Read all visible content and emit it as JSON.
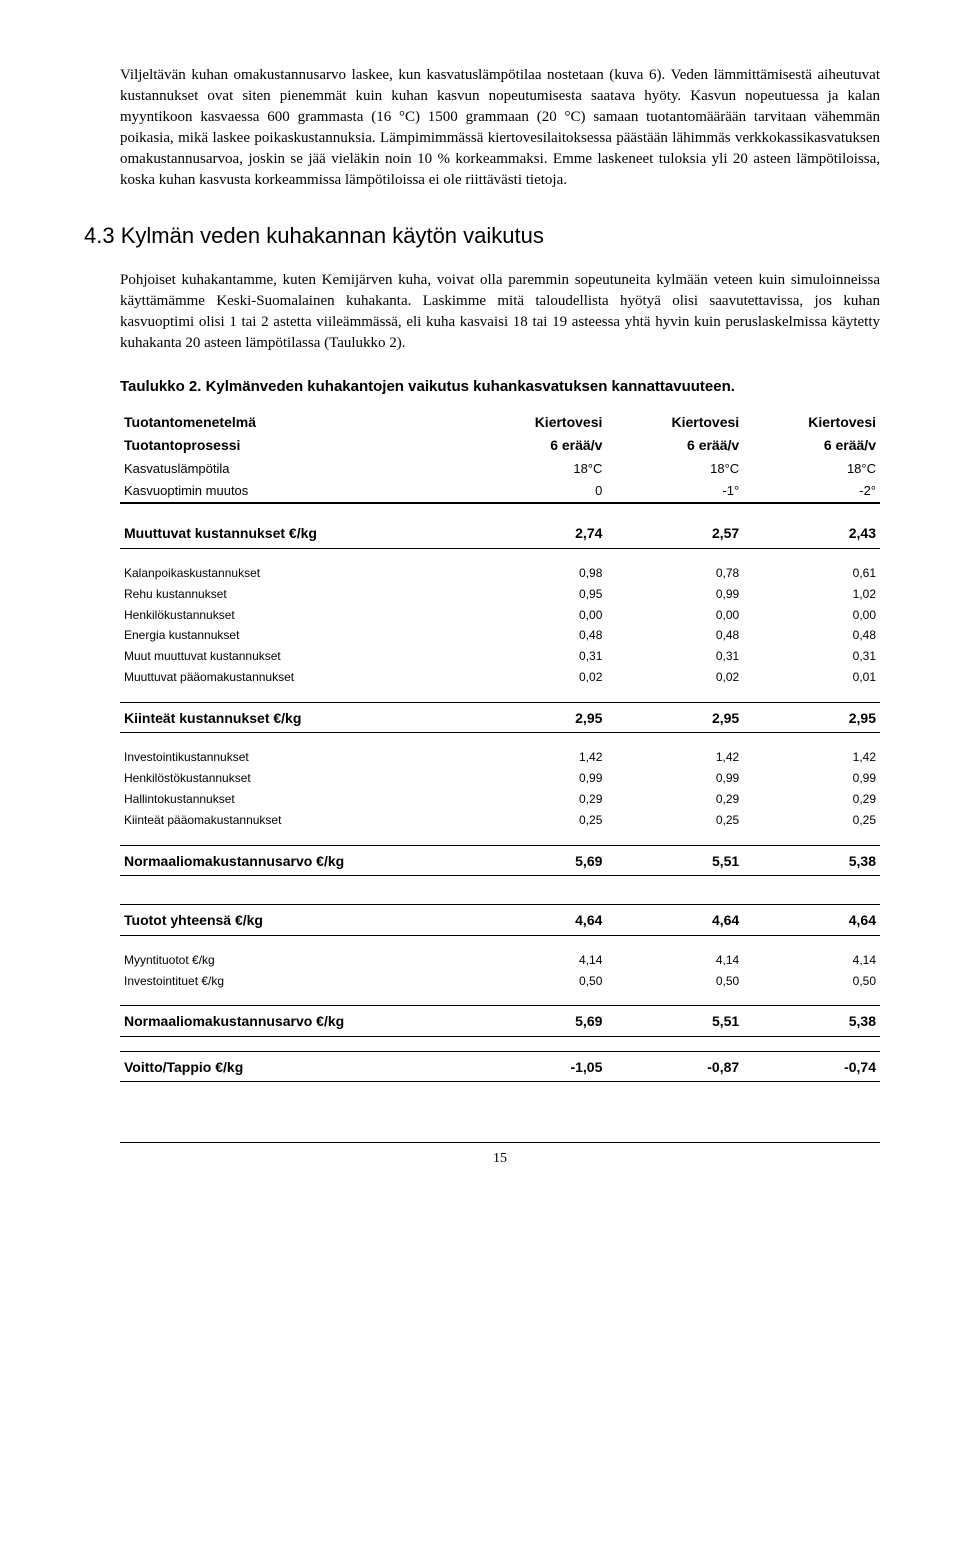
{
  "paragraph1": "Viljeltävän kuhan omakustannusarvo laskee, kun kasvatuslämpötilaa nostetaan (kuva 6). Veden lämmittämisestä aiheutuvat kustannukset ovat siten pienemmät kuin kuhan kasvun nopeutumisesta saatava hyöty. Kasvun nopeutuessa ja kalan myyntikoon kasvaessa 600 grammasta (16 °C) 1500 grammaan (20 °C) samaan tuotantomäärään tarvitaan vähemmän poikasia, mikä laskee poikaskustannuksia. Lämpimimmässä kiertovesilaitoksessa päästään lähimmäs verkkokassikasvatuksen omakustannusarvoa, joskin se jää vieläkin noin 10 % korkeammaksi. Emme laskeneet tuloksia yli 20 asteen lämpötiloissa, koska kuhan kasvusta korkeammissa lämpötiloissa ei ole riittävästi tietoja.",
  "section_heading": "4.3 Kylmän veden kuhakannan käytön vaikutus",
  "paragraph2": "Pohjoiset kuhakantamme, kuten Kemijärven kuha, voivat olla paremmin sopeutuneita kylmään veteen kuin simuloinneissa käyttämämme Keski-Suomalainen kuhakanta. Laskimme mitä taloudellista hyötyä olisi saavutettavissa, jos kuhan kasvuoptimi olisi 1 tai 2 astetta viileämmässä, eli kuha kasvaisi 18 tai 19 asteessa yhtä hyvin kuin peruslaskelmissa käytetty kuhakanta 20 asteen lämpötilassa (Taulukko 2).",
  "table_caption": "Taulukko 2. Kylmänveden kuhakantojen vaikutus kuhankasvatuksen kannattavuuteen.",
  "table": {
    "header_rows": [
      {
        "label": "Tuotantomenetelmä",
        "c1": "Kiertovesi",
        "c2": "Kiertovesi",
        "c3": "Kiertovesi",
        "bold": true
      },
      {
        "label": "Tuotantoprosessi",
        "c1": "6 erää/v",
        "c2": "6 erää/v",
        "c3": "6 erää/v",
        "bold": true,
        "small": true
      },
      {
        "label": "Kasvatuslämpötila",
        "c1": "18°C",
        "c2": "18°C",
        "c3": "18°C"
      },
      {
        "label": "Kasvuoptimin muutos",
        "c1": "0",
        "c2": "-1°",
        "c3": "-2°"
      }
    ],
    "muuttuvat_header": {
      "label": "Muuttuvat kustannukset €/kg",
      "c1": "2,74",
      "c2": "2,57",
      "c3": "2,43"
    },
    "muuttuvat_rows": [
      {
        "label": "Kalanpoikaskustannukset",
        "c1": "0,98",
        "c2": "0,78",
        "c3": "0,61"
      },
      {
        "label": "Rehu kustannukset",
        "c1": "0,95",
        "c2": "0,99",
        "c3": "1,02"
      },
      {
        "label": "Henkilökustannukset",
        "c1": "0,00",
        "c2": "0,00",
        "c3": "0,00"
      },
      {
        "label": "Energia kustannukset",
        "c1": "0,48",
        "c2": "0,48",
        "c3": "0,48"
      },
      {
        "label": "Muut muuttuvat kustannukset",
        "c1": "0,31",
        "c2": "0,31",
        "c3": "0,31"
      },
      {
        "label": "Muuttuvat pääomakustannukset",
        "c1": "0,02",
        "c2": "0,02",
        "c3": "0,01"
      }
    ],
    "kiinteat_header": {
      "label": "Kiinteät kustannukset €/kg",
      "c1": "2,95",
      "c2": "2,95",
      "c3": "2,95"
    },
    "kiinteat_rows": [
      {
        "label": "Investointikustannukset",
        "c1": "1,42",
        "c2": "1,42",
        "c3": "1,42"
      },
      {
        "label": "Henkilöstökustannukset",
        "c1": "0,99",
        "c2": "0,99",
        "c3": "0,99"
      },
      {
        "label": "Hallintokustannukset",
        "c1": "0,29",
        "c2": "0,29",
        "c3": "0,29"
      },
      {
        "label": "Kiinteät pääomakustannukset",
        "c1": "0,25",
        "c2": "0,25",
        "c3": "0,25"
      }
    ],
    "normaali1": {
      "label": "Normaaliomakustannusarvo €/kg",
      "c1": "5,69",
      "c2": "5,51",
      "c3": "5,38"
    },
    "tuotot_header": {
      "label": "Tuotot yhteensä €/kg",
      "c1": "4,64",
      "c2": "4,64",
      "c3": "4,64"
    },
    "tuotot_rows": [
      {
        "label": "Myyntituotot €/kg",
        "c1": "4,14",
        "c2": "4,14",
        "c3": "4,14"
      },
      {
        "label": "Investointituet €/kg",
        "c1": "0,50",
        "c2": "0,50",
        "c3": "0,50"
      }
    ],
    "normaali2": {
      "label": "Normaaliomakustannusarvo €/kg",
      "c1": "5,69",
      "c2": "5,51",
      "c3": "5,38"
    },
    "voitto": {
      "label": "Voitto/Tappio €/kg",
      "c1": "-1,05",
      "c2": "-0,87",
      "c3": "-0,74"
    }
  },
  "page_number": "15"
}
